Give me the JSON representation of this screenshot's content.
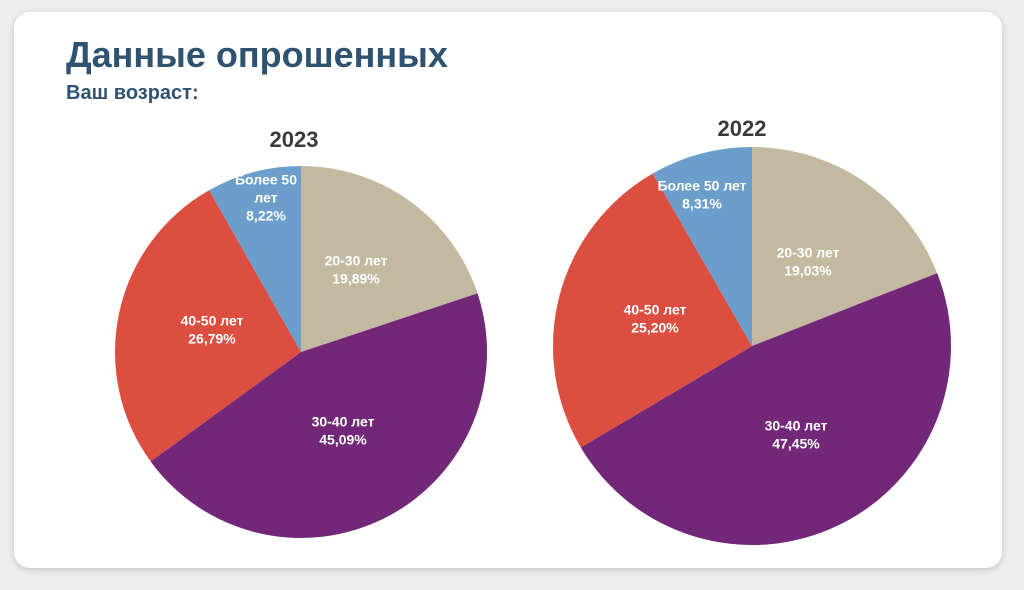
{
  "header": {
    "title": "Данные опрошенных",
    "subtitle": "Ваш возраст:"
  },
  "chart_data": [
    {
      "type": "pie",
      "title": "2023",
      "slices": [
        {
          "label": "20-30 лет",
          "value": 19.89,
          "value_label": "19,89%",
          "color": "#c2b9a0"
        },
        {
          "label": "30-40 лет",
          "value": 45.09,
          "value_label": "45,09%",
          "color": "#722778"
        },
        {
          "label": "40-50 лет",
          "value": 26.79,
          "value_label": "26,79%",
          "color": "#db4e40"
        },
        {
          "label": "Более 50 лет",
          "value": 8.22,
          "value_label": "8,22%",
          "color": "#6b9ecb"
        }
      ]
    },
    {
      "type": "pie",
      "title": "2022",
      "slices": [
        {
          "label": "20-30 лет",
          "value": 19.03,
          "value_label": "19,03%",
          "color": "#c2b9a0"
        },
        {
          "label": "30-40 лет",
          "value": 47.45,
          "value_label": "47,45%",
          "color": "#722778"
        },
        {
          "label": "40-50 лет",
          "value": 25.2,
          "value_label": "25,20%",
          "color": "#db4e40"
        },
        {
          "label": "Более 50 лет",
          "value": 8.31,
          "value_label": "8,31%",
          "color": "#6b9ecb"
        }
      ]
    }
  ]
}
